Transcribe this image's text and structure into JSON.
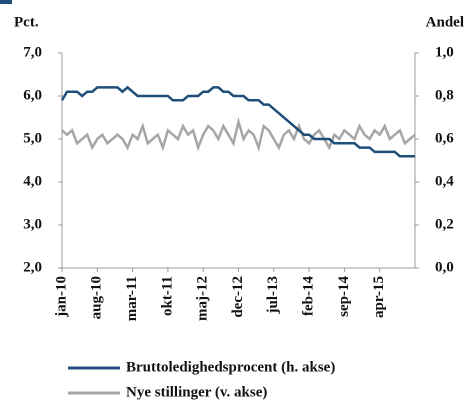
{
  "chart_data": {
    "type": "line",
    "y_label": "Pct.",
    "y2_label": "Andel",
    "categories": [
      "jan-10",
      null,
      null,
      null,
      null,
      null,
      null,
      "aug-10",
      null,
      null,
      null,
      null,
      null,
      null,
      "mar-11",
      null,
      null,
      null,
      null,
      null,
      null,
      "okt-11",
      null,
      null,
      null,
      null,
      null,
      null,
      "maj-12",
      null,
      null,
      null,
      null,
      null,
      null,
      "dec-12",
      null,
      null,
      null,
      null,
      null,
      null,
      "jul-13",
      null,
      null,
      null,
      null,
      null,
      null,
      "feb-14",
      null,
      null,
      null,
      null,
      null,
      null,
      "sep-14",
      null,
      null,
      null,
      null,
      null,
      null,
      "apr-15",
      null,
      null,
      null,
      null,
      null,
      null,
      null
    ],
    "series": [
      {
        "name": "Bruttoledighedsprocent (h. akse)",
        "color": "#1f4e79",
        "axis": "y2",
        "values": [
          0.78,
          0.82,
          0.82,
          0.82,
          0.8,
          0.82,
          0.82,
          0.84,
          0.84,
          0.84,
          0.84,
          0.84,
          0.82,
          0.84,
          0.82,
          0.8,
          0.8,
          0.8,
          0.8,
          0.8,
          0.8,
          0.8,
          0.78,
          0.78,
          0.78,
          0.8,
          0.8,
          0.8,
          0.82,
          0.82,
          0.84,
          0.84,
          0.82,
          0.82,
          0.8,
          0.8,
          0.8,
          0.78,
          0.78,
          0.78,
          0.76,
          0.76,
          0.74,
          0.72,
          0.7,
          0.68,
          0.66,
          0.64,
          0.62,
          0.62,
          0.6,
          0.6,
          0.6,
          0.6,
          0.58,
          0.58,
          0.58,
          0.58,
          0.58,
          0.56,
          0.56,
          0.56,
          0.54,
          0.54,
          0.54,
          0.54,
          0.54,
          0.52,
          0.52,
          0.52,
          0.52
        ]
      },
      {
        "name": "Nye stillinger (v. akse)",
        "color": "#a6a6a6",
        "axis": "y",
        "values": [
          5.2,
          5.1,
          5.2,
          4.9,
          5.0,
          5.1,
          4.8,
          5.0,
          5.1,
          4.9,
          5.0,
          5.1,
          5.0,
          4.8,
          5.1,
          5.0,
          5.3,
          4.9,
          5.0,
          5.1,
          4.8,
          5.2,
          5.1,
          5.0,
          5.3,
          5.1,
          5.2,
          4.8,
          5.1,
          5.3,
          5.2,
          5.0,
          5.3,
          5.1,
          4.9,
          5.4,
          5.0,
          5.2,
          5.1,
          4.8,
          5.3,
          5.2,
          5.0,
          4.8,
          5.1,
          5.2,
          5.0,
          5.3,
          5.0,
          4.9,
          5.1,
          5.2,
          5.0,
          4.8,
          5.1,
          5.0,
          5.2,
          5.1,
          5.0,
          5.3,
          5.1,
          5.0,
          5.2,
          5.1,
          5.3,
          5.0,
          5.1,
          5.2,
          4.9,
          5.0,
          5.1
        ]
      }
    ],
    "ylim": [
      2,
      7
    ],
    "yticks": [
      {
        "value": 2,
        "label": "2,0"
      },
      {
        "value": 3,
        "label": "3,0"
      },
      {
        "value": 4,
        "label": "4,0"
      },
      {
        "value": 5,
        "label": "5,0"
      },
      {
        "value": 6,
        "label": "6,0"
      },
      {
        "value": 7,
        "label": "7,0"
      }
    ],
    "y2lim": [
      0,
      1
    ],
    "y2ticks": [
      {
        "value": 0,
        "label": "0,0"
      },
      {
        "value": 0.2,
        "label": "0,2"
      },
      {
        "value": 0.4,
        "label": "0,4"
      },
      {
        "value": 0.6,
        "label": "0,6"
      },
      {
        "value": 0.8,
        "label": "0,8"
      },
      {
        "value": 1,
        "label": "1,0"
      }
    ]
  }
}
